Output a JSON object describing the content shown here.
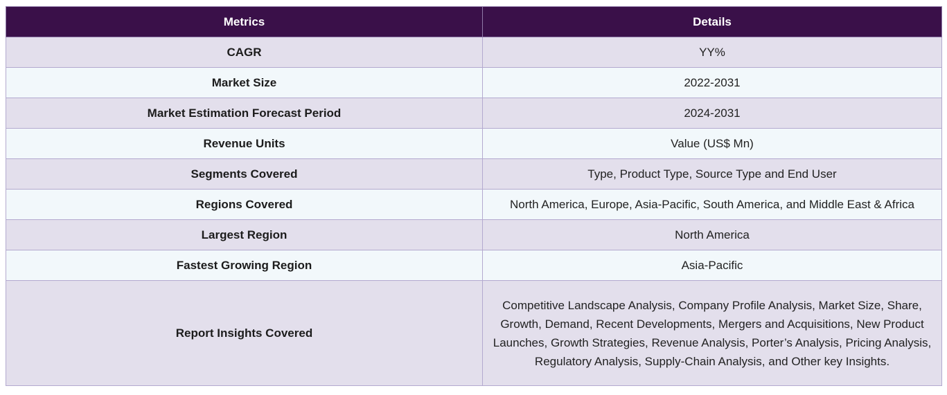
{
  "table": {
    "headers": [
      "Metrics",
      "Details"
    ],
    "rows": [
      {
        "metric": "CAGR",
        "details": "YY%"
      },
      {
        "metric": "Market Size",
        "details": "2022-2031"
      },
      {
        "metric": "Market Estimation Forecast Period",
        "details": "2024-2031"
      },
      {
        "metric": "Revenue Units",
        "details": "Value (US$ Mn)"
      },
      {
        "metric": "Segments Covered",
        "details": "Type, Product Type, Source Type and End User"
      },
      {
        "metric": "Regions Covered",
        "details": "North America, Europe, Asia-Pacific, South America, and Middle East & Africa"
      },
      {
        "metric": "Largest Region",
        "details": "North America"
      },
      {
        "metric": "Fastest Growing Region",
        "details": "Asia-Pacific"
      },
      {
        "metric": "Report Insights Covered",
        "details": "Competitive Landscape Analysis, Company Profile Analysis, Market Size, Share, Growth, Demand, Recent Developments, Mergers and Acquisitions, New Product Launches, Growth Strategies, Revenue Analysis, Porter’s Analysis, Pricing Analysis, Regulatory Analysis, Supply-Chain Analysis, and Other key Insights."
      }
    ]
  },
  "colors": {
    "header_bg": "#3a1049",
    "row_odd_bg": "#e3dfec",
    "row_even_bg": "#f2f8fb",
    "border": "#b3a9cf"
  }
}
